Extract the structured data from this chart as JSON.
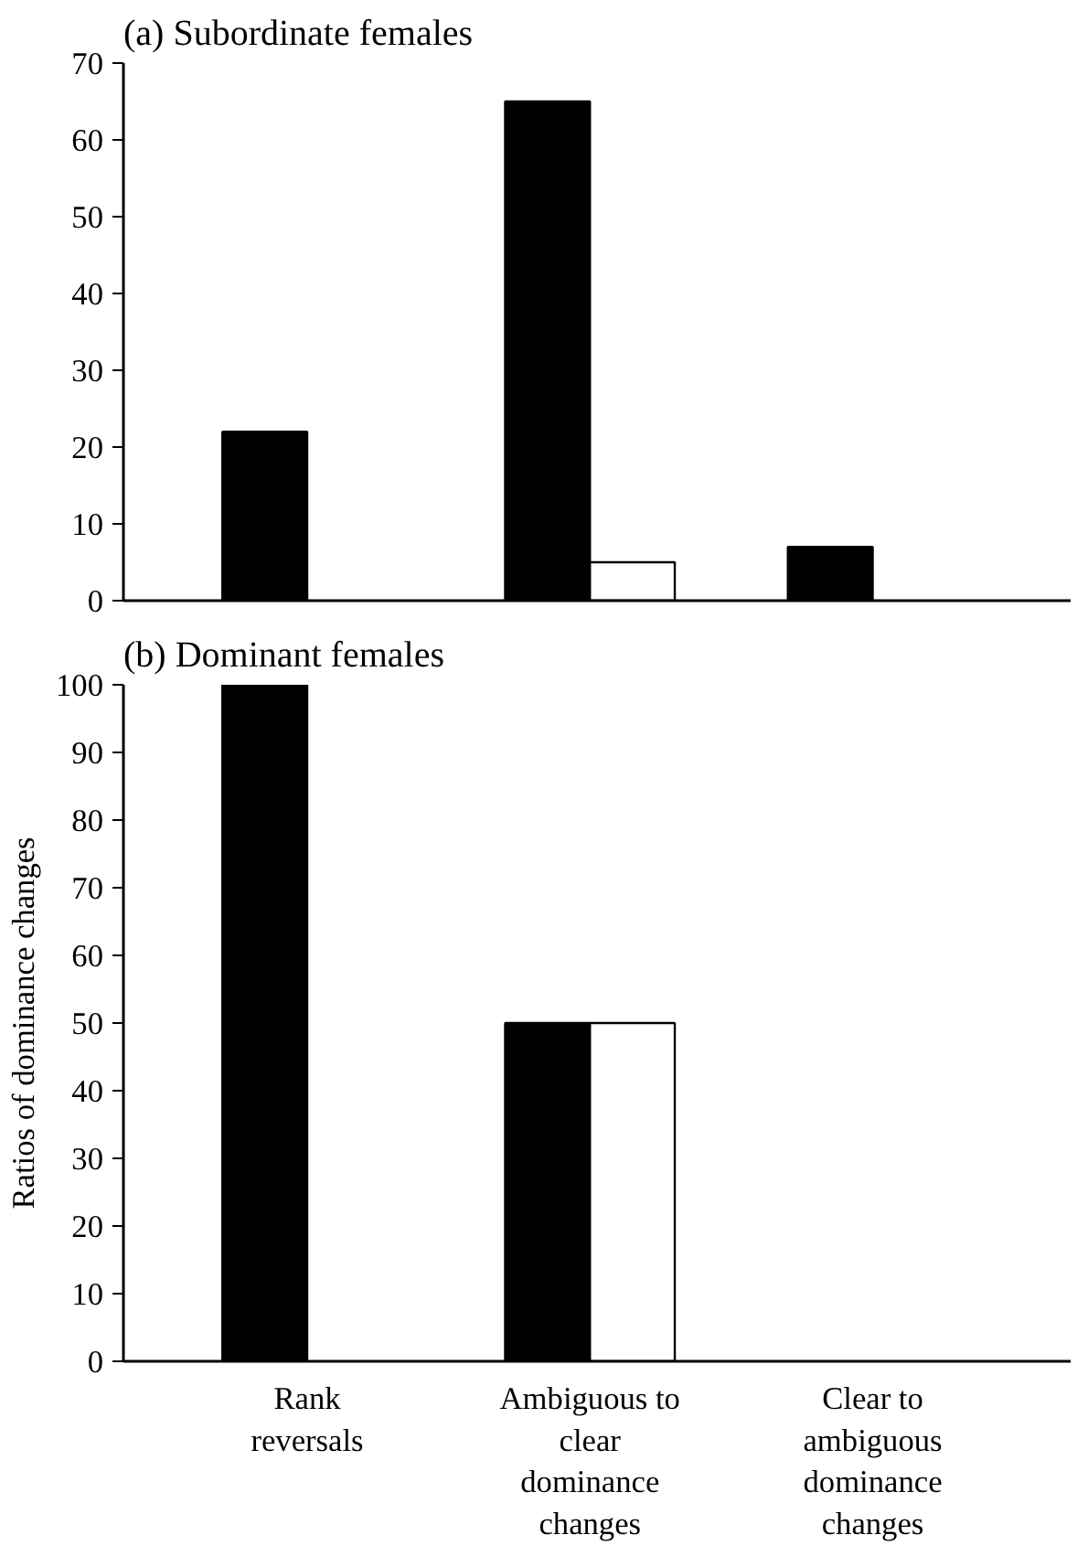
{
  "chart_data": [
    {
      "type": "bar",
      "title": "(a) Subordinate females",
      "categories": [
        "Rank reversals",
        "Ambiguous to clear dominance changes",
        "Clear to ambiguous dominance changes"
      ],
      "series": [
        {
          "color": "#000000",
          "values": [
            22,
            65,
            7
          ]
        },
        {
          "color": "#ffffff",
          "values": [
            null,
            5,
            null
          ]
        }
      ],
      "ylim": [
        0,
        70
      ],
      "yticks": [
        0,
        10,
        20,
        30,
        40,
        50,
        60,
        70
      ],
      "tick_labels": "y",
      "grid": false
    },
    {
      "type": "bar",
      "title": "(b) Dominant females",
      "ylabel": "Ratios of dominance changes",
      "categories": [
        "Rank reversals",
        "Ambiguous to clear dominance changes",
        "Clear to ambiguous dominance changes"
      ],
      "series": [
        {
          "color": "#000000",
          "values": [
            100,
            50,
            null
          ]
        },
        {
          "color": "#ffffff",
          "values": [
            null,
            50,
            null
          ]
        }
      ],
      "ylim": [
        0,
        100
      ],
      "yticks": [
        0,
        10,
        20,
        30,
        40,
        50,
        60,
        70,
        80,
        90,
        100
      ],
      "grid": false
    }
  ]
}
